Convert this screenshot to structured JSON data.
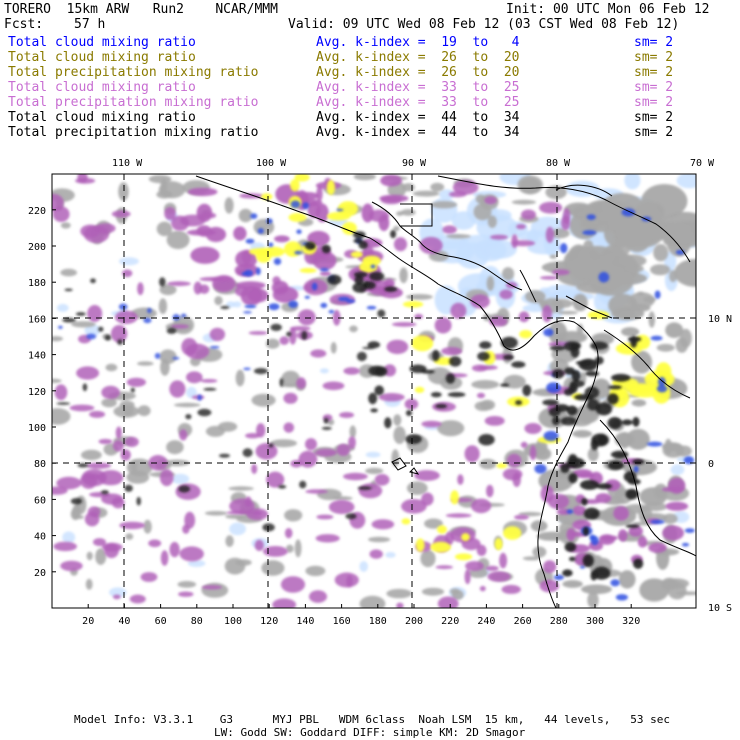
{
  "header": {
    "title": "TORERO  15km ARW   Run2    NCAR/MMM",
    "init": "Init: 00 UTC Mon 06 Feb 12",
    "fcst_label": "Fcst:",
    "fcst_value": "57 h",
    "valid": "Valid: 09 UTC Wed 08 Feb 12 (03 CST Wed 08 Feb 12)"
  },
  "legend": [
    {
      "name": "Total cloud mixing ratio",
      "kindex": "Avg. k-index =  19  to   4",
      "sm": "sm= 2",
      "color": "#0000ff"
    },
    {
      "name": "Total cloud mixing ratio",
      "kindex": "Avg. k-index =  26  to  20",
      "sm": "sm= 2",
      "color": "#8a7a00"
    },
    {
      "name": "Total precipitation mixing ratio",
      "kindex": "Avg. k-index =  26  to  20",
      "sm": "sm= 2",
      "color": "#8a7a00"
    },
    {
      "name": "Total cloud mixing ratio",
      "kindex": "Avg. k-index =  33  to  25",
      "sm": "sm= 2",
      "color": "#c86ed2"
    },
    {
      "name": "Total precipitation mixing ratio",
      "kindex": "Avg. k-index =  33  to  25",
      "sm": "sm= 2",
      "color": "#c86ed2"
    },
    {
      "name": "Total cloud mixing ratio",
      "kindex": "Avg. k-index =  44  to  34",
      "sm": "sm= 2",
      "color": "#000000"
    },
    {
      "name": "Total precipitation mixing ratio",
      "kindex": "Avg. k-index =  44  to  34",
      "sm": "sm= 2",
      "color": "#000000"
    }
  ],
  "map": {
    "lon_labels": [
      "110 W",
      "100 W",
      "90 W",
      "80 W",
      "70 W"
    ],
    "lat_labels": [
      "10 N",
      "0",
      "10 S"
    ],
    "x_ticks": [
      "20",
      "40",
      "60",
      "80",
      "100",
      "120",
      "140",
      "160",
      "180",
      "200",
      "220",
      "240",
      "260",
      "280",
      "300",
      "320"
    ],
    "y_ticks": [
      "20",
      "40",
      "60",
      "80",
      "100",
      "120",
      "140",
      "160",
      "180",
      "200",
      "220"
    ],
    "colors": {
      "black": "#202020",
      "gray": "#a8a8a8",
      "purple": "#b060b8",
      "yellow": "#ffff40",
      "blue": "#3050e0",
      "lightblue": "#c8e0ff"
    }
  },
  "footer": {
    "line1": "Model Info: V3.3.1    G3      MYJ PBL   WDM 6class  Noah LSM  15 km,   44 levels,   53 sec",
    "line2": "LW: Godd SW: Goddard DIFF: simple KM: 2D Smagor"
  }
}
